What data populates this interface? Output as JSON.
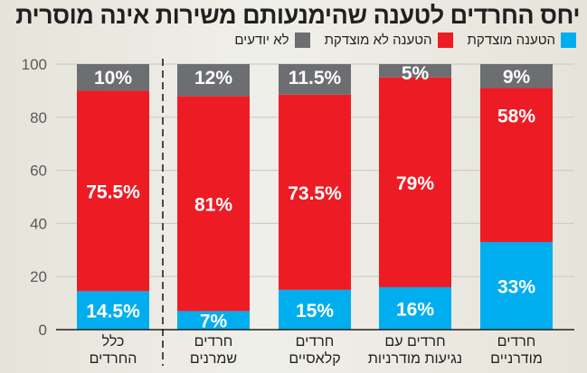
{
  "chart_data": {
    "type": "bar",
    "stacked": true,
    "title": "יחס החרדים לטענה שהימנעותם משירות אינה מוסרית",
    "categories": [
      [
        "כלל",
        "החרדים"
      ],
      [
        "חרדים",
        "שמרנים"
      ],
      [
        "חרדים",
        "קלאסיים"
      ],
      [
        "חרדים עם",
        "נגיעות מודרניות"
      ],
      [
        "חרדים",
        "מודרניים"
      ]
    ],
    "series": [
      {
        "name": "הטענה מוצדקת",
        "color": "#00aeef",
        "values": [
          14.5,
          7,
          15,
          16,
          33
        ],
        "labels": [
          "14.5%",
          "7%",
          "15%",
          "16%",
          "33%"
        ]
      },
      {
        "name": "הטענה לא מוצדקת",
        "color": "#ed1c24",
        "values": [
          75.5,
          81,
          73.5,
          79,
          58
        ],
        "labels": [
          "75.5%",
          "81%",
          "73.5%",
          "79%",
          "58%"
        ]
      },
      {
        "name": "לא יודעים",
        "color": "#6d6e71",
        "values": [
          10,
          12,
          11.5,
          5,
          9
        ],
        "labels": [
          "10%",
          "12%",
          "11.5%",
          "5%",
          "9%"
        ]
      }
    ],
    "ylim": [
      0,
      100
    ],
    "yticks": [
      0,
      20,
      40,
      60,
      80,
      100
    ],
    "xlabel": "",
    "ylabel": "",
    "grid": true,
    "legend_position": "top-right",
    "separator_after_category": 0
  }
}
